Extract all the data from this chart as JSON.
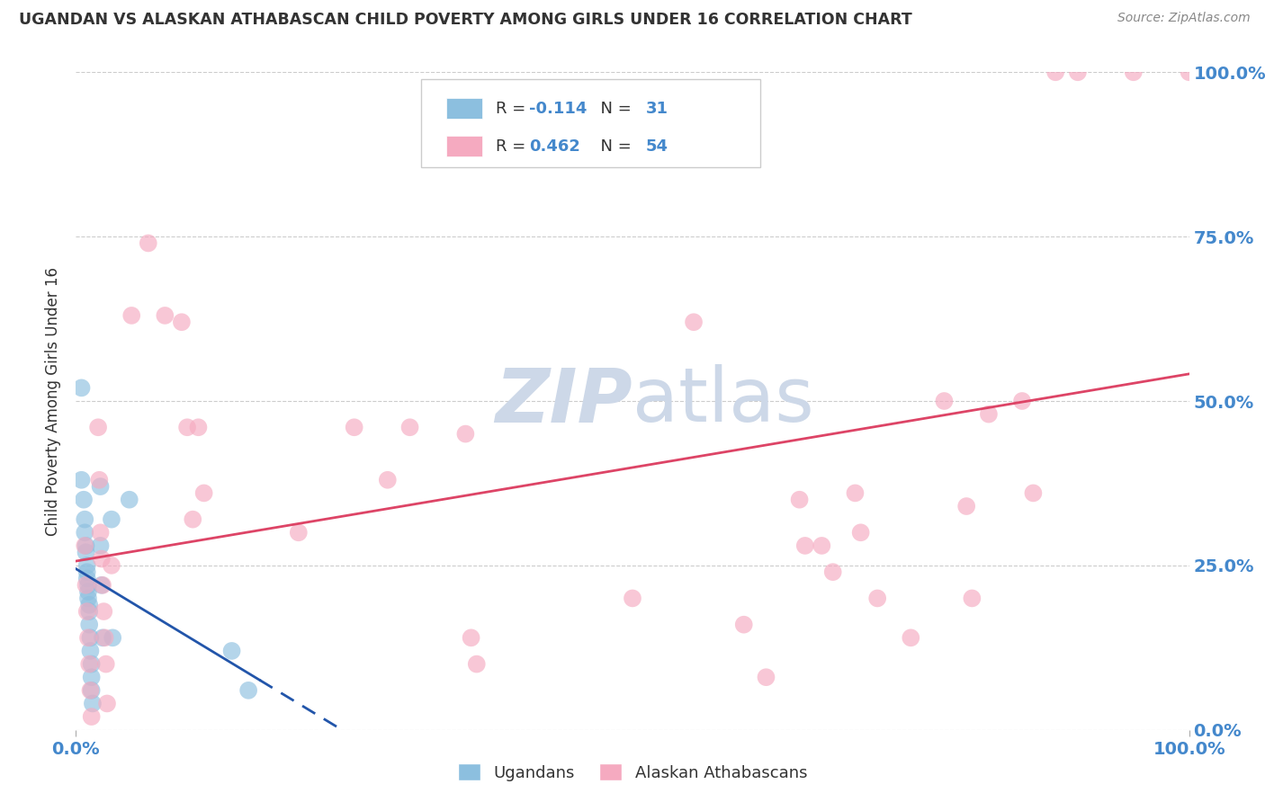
{
  "title": "UGANDAN VS ALASKAN ATHABASCAN CHILD POVERTY AMONG GIRLS UNDER 16 CORRELATION CHART",
  "source": "Source: ZipAtlas.com",
  "ylabel": "Child Poverty Among Girls Under 16",
  "xlim": [
    0,
    1
  ],
  "ylim": [
    0,
    1
  ],
  "ytick_positions": [
    0,
    0.25,
    0.5,
    0.75,
    1.0
  ],
  "ytick_labels": [
    "0.0%",
    "25.0%",
    "50.0%",
    "75.0%",
    "100.0%"
  ],
  "xtick_positions": [
    0,
    1
  ],
  "xtick_labels": [
    "0.0%",
    "100.0%"
  ],
  "ugandan_color": "#8cbfdf",
  "ugandan_edge_color": "#7aafd0",
  "athabascan_color": "#f5aac0",
  "athabascan_edge_color": "#e898b0",
  "ugandan_line_color": "#2255aa",
  "athabascan_line_color": "#dd4466",
  "legend_box_color": "#f0f4f8",
  "legend_edge_color": "#cccccc",
  "grid_color": "#cccccc",
  "watermark_color": "#cdd8e8",
  "background_color": "#ffffff",
  "tick_label_color": "#4488cc",
  "title_color": "#333333",
  "source_color": "#888888",
  "ylabel_color": "#333333",
  "ugandan_R": -0.114,
  "ugandan_N": 31,
  "athabascan_R": 0.462,
  "athabascan_N": 54,
  "ugandan_points": [
    [
      0.005,
      0.52
    ],
    [
      0.005,
      0.38
    ],
    [
      0.007,
      0.35
    ],
    [
      0.008,
      0.32
    ],
    [
      0.008,
      0.3
    ],
    [
      0.009,
      0.28
    ],
    [
      0.009,
      0.27
    ],
    [
      0.01,
      0.25
    ],
    [
      0.01,
      0.24
    ],
    [
      0.01,
      0.23
    ],
    [
      0.011,
      0.22
    ],
    [
      0.011,
      0.21
    ],
    [
      0.011,
      0.2
    ],
    [
      0.012,
      0.19
    ],
    [
      0.012,
      0.18
    ],
    [
      0.012,
      0.16
    ],
    [
      0.013,
      0.14
    ],
    [
      0.013,
      0.12
    ],
    [
      0.014,
      0.1
    ],
    [
      0.014,
      0.08
    ],
    [
      0.014,
      0.06
    ],
    [
      0.015,
      0.04
    ],
    [
      0.022,
      0.37
    ],
    [
      0.022,
      0.28
    ],
    [
      0.023,
      0.22
    ],
    [
      0.024,
      0.14
    ],
    [
      0.032,
      0.32
    ],
    [
      0.033,
      0.14
    ],
    [
      0.048,
      0.35
    ],
    [
      0.14,
      0.12
    ],
    [
      0.155,
      0.06
    ]
  ],
  "athabascan_points": [
    [
      0.008,
      0.28
    ],
    [
      0.009,
      0.22
    ],
    [
      0.01,
      0.18
    ],
    [
      0.011,
      0.14
    ],
    [
      0.012,
      0.1
    ],
    [
      0.013,
      0.06
    ],
    [
      0.014,
      0.02
    ],
    [
      0.02,
      0.46
    ],
    [
      0.021,
      0.38
    ],
    [
      0.022,
      0.3
    ],
    [
      0.023,
      0.26
    ],
    [
      0.024,
      0.22
    ],
    [
      0.025,
      0.18
    ],
    [
      0.026,
      0.14
    ],
    [
      0.027,
      0.1
    ],
    [
      0.028,
      0.04
    ],
    [
      0.032,
      0.25
    ],
    [
      0.05,
      0.63
    ],
    [
      0.065,
      0.74
    ],
    [
      0.08,
      0.63
    ],
    [
      0.095,
      0.62
    ],
    [
      0.1,
      0.46
    ],
    [
      0.105,
      0.32
    ],
    [
      0.11,
      0.46
    ],
    [
      0.115,
      0.36
    ],
    [
      0.2,
      0.3
    ],
    [
      0.25,
      0.46
    ],
    [
      0.28,
      0.38
    ],
    [
      0.3,
      0.46
    ],
    [
      0.35,
      0.45
    ],
    [
      0.355,
      0.14
    ],
    [
      0.36,
      0.1
    ],
    [
      0.5,
      0.2
    ],
    [
      0.555,
      0.62
    ],
    [
      0.6,
      0.16
    ],
    [
      0.62,
      0.08
    ],
    [
      0.65,
      0.35
    ],
    [
      0.655,
      0.28
    ],
    [
      0.67,
      0.28
    ],
    [
      0.68,
      0.24
    ],
    [
      0.7,
      0.36
    ],
    [
      0.705,
      0.3
    ],
    [
      0.72,
      0.2
    ],
    [
      0.75,
      0.14
    ],
    [
      0.78,
      0.5
    ],
    [
      0.8,
      0.34
    ],
    [
      0.805,
      0.2
    ],
    [
      0.82,
      0.48
    ],
    [
      0.85,
      0.5
    ],
    [
      0.86,
      0.36
    ],
    [
      0.88,
      1.0
    ],
    [
      0.9,
      1.0
    ],
    [
      0.95,
      1.0
    ],
    [
      1.0,
      1.0
    ]
  ]
}
